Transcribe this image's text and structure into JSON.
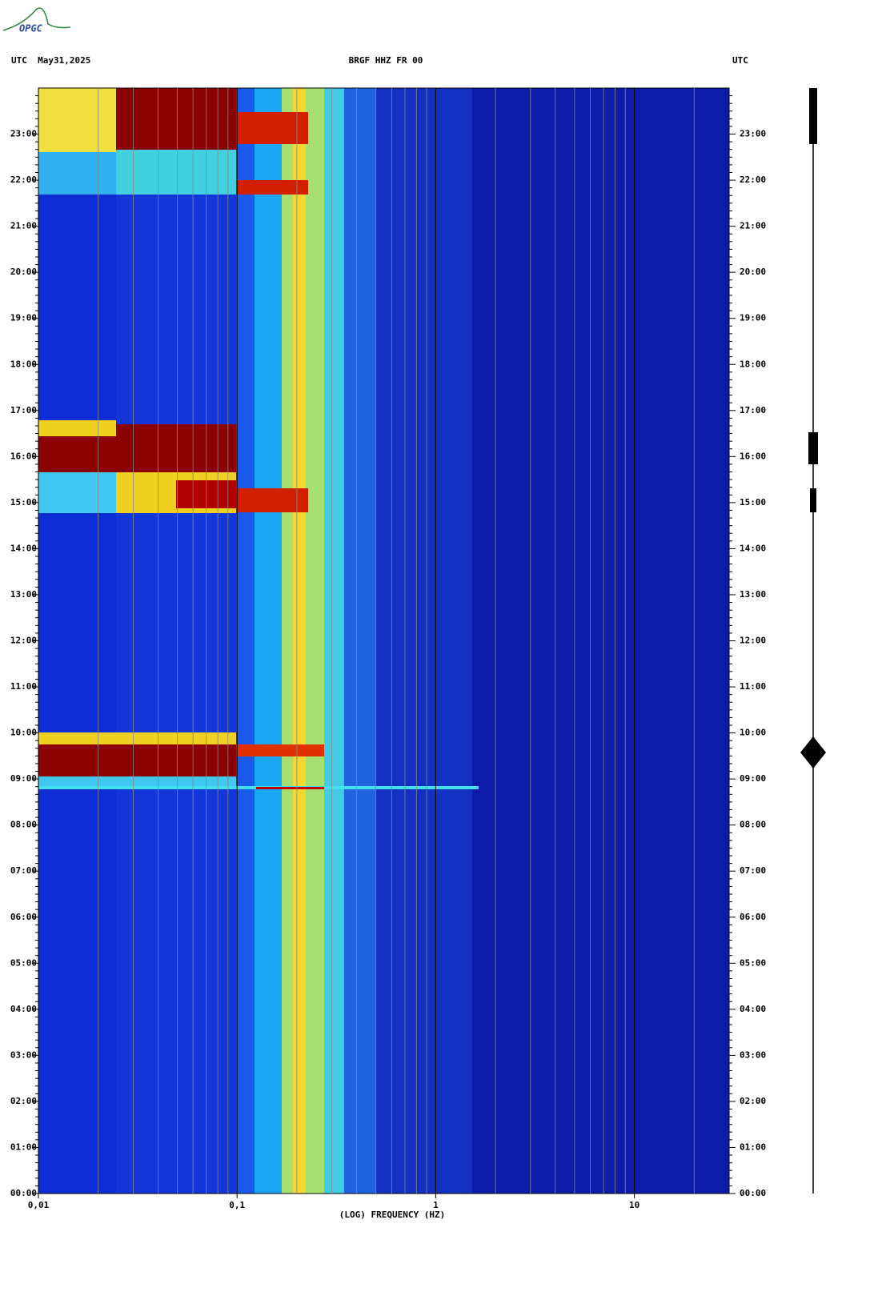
{
  "chart_data": {
    "type": "spectrogram",
    "logo": "OPGC",
    "title": "BRGF HHZ FR 00",
    "left_header": "UTC  May31,2025",
    "right_header": "UTC",
    "xlabel": "(LOG) FREQUENCY (HZ)",
    "xscale": "log",
    "xlim": [
      0.01,
      30
    ],
    "xticks": [
      {
        "value": 0.01,
        "label": "0,01"
      },
      {
        "value": 0.1,
        "label": "0,1"
      },
      1,
      10
    ],
    "ylim": [
      0,
      24
    ],
    "yticks": [
      {
        "value": 0,
        "label": "00:00"
      },
      {
        "value": 1,
        "label": "01:00"
      },
      {
        "value": 2,
        "label": "02:00"
      },
      {
        "value": 3,
        "label": "03:00"
      },
      {
        "value": 4,
        "label": "04:00"
      },
      {
        "value": 5,
        "label": "05:00"
      },
      {
        "value": 6,
        "label": "06:00"
      },
      {
        "value": 7,
        "label": "07:00"
      },
      {
        "value": 8,
        "label": "08:00"
      },
      {
        "value": 9,
        "label": "09:00"
      },
      {
        "value": 10,
        "label": "10:00"
      },
      {
        "value": 11,
        "label": "11:00"
      },
      {
        "value": 12,
        "label": "12:00"
      },
      {
        "value": 13,
        "label": "13:00"
      },
      {
        "value": 14,
        "label": "14:00"
      },
      {
        "value": 15,
        "label": "15:00"
      },
      {
        "value": 16,
        "label": "16:00"
      },
      {
        "value": 17,
        "label": "17:00"
      },
      {
        "value": 18,
        "label": "18:00"
      },
      {
        "value": 19,
        "label": "19:00"
      },
      {
        "value": 20,
        "label": "20:00"
      },
      {
        "value": 21,
        "label": "21:00"
      },
      {
        "value": 22,
        "label": "22:00"
      },
      {
        "value": 23,
        "label": "23:00"
      }
    ]
  }
}
